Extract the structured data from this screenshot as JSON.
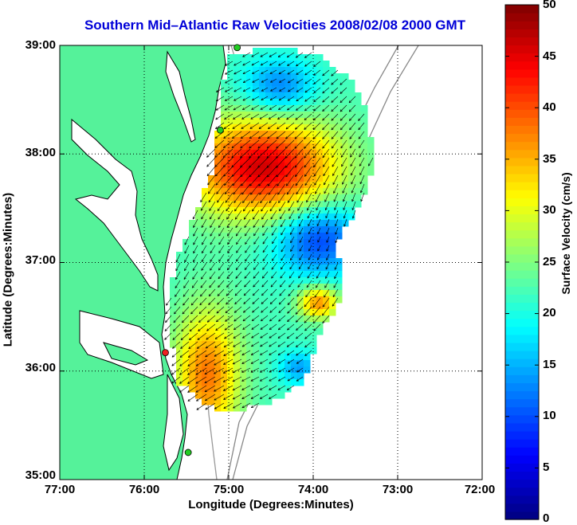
{
  "title": "Southern Mid–Atlantic Raw Velocities 2008/02/08 2000 GMT",
  "axes": {
    "xlabel": "Longitude (Degrees:Minutes)",
    "ylabel": "Latitude (Degrees:Minutes)",
    "xticks": [
      "77:00",
      "76:00",
      "75:00",
      "74:00",
      "73:00",
      "72:00"
    ],
    "yticks": [
      "39:00",
      "38:00",
      "37:00",
      "36:00",
      "35:00"
    ]
  },
  "colorbar": {
    "label": "Surface Velocity (cm/s)",
    "ticks": [
      "50",
      "45",
      "40",
      "35",
      "30",
      "25",
      "20",
      "15",
      "10",
      "5",
      "0"
    ],
    "min": 0,
    "max": 50
  },
  "chart_data": {
    "type": "map",
    "projection": "lon-lat",
    "lon_range": [
      -77,
      -72
    ],
    "lat_range": [
      35,
      39
    ],
    "grid": true,
    "stations": [
      {
        "name": "site-north",
        "lon": -74.9,
        "lat": 38.98,
        "color": "#22cc22"
      },
      {
        "name": "site-delaware",
        "lon": -75.1,
        "lat": 38.22,
        "color": "#22cc22"
      },
      {
        "name": "site-virginia",
        "lon": -75.75,
        "lat": 36.17,
        "color": "#ee2222"
      },
      {
        "name": "site-carolina",
        "lon": -75.48,
        "lat": 35.25,
        "color": "#22cc22"
      }
    ]
  }
}
